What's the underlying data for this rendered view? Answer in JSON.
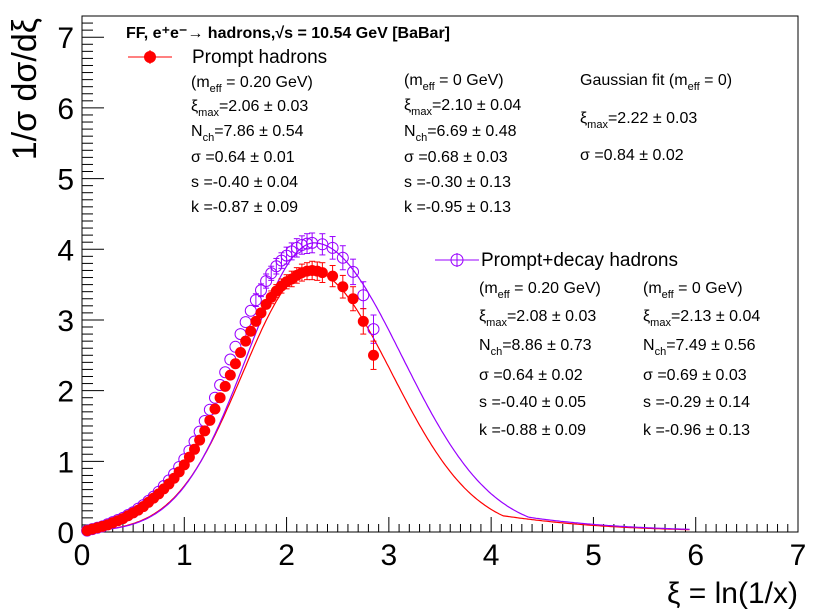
{
  "chart_data": {
    "type": "scatter",
    "title": "FF, e⁺e⁻→ hadrons,√s = 10.54 GeV [BaBar]",
    "xlabel": "ξ = ln(1/x)",
    "ylabel": "1/σ dσ/dξ",
    "xlim": [
      0,
      7
    ],
    "ylim": [
      0,
      7.3
    ],
    "x_ticks": [
      "0",
      "1",
      "2",
      "3",
      "4",
      "5",
      "6",
      "7"
    ],
    "y_ticks": [
      "0",
      "1",
      "2",
      "3",
      "4",
      "5",
      "6",
      "7"
    ],
    "series": [
      {
        "name": "Prompt hadrons",
        "color": "#ff0000",
        "marker": "filled-circle",
        "points": [
          {
            "x": 0.05,
            "y": 0.02,
            "err": 0.01
          },
          {
            "x": 0.1,
            "y": 0.04,
            "err": 0.01
          },
          {
            "x": 0.15,
            "y": 0.06,
            "err": 0.01
          },
          {
            "x": 0.2,
            "y": 0.08,
            "err": 0.01
          },
          {
            "x": 0.25,
            "y": 0.1,
            "err": 0.01
          },
          {
            "x": 0.3,
            "y": 0.13,
            "err": 0.01
          },
          {
            "x": 0.35,
            "y": 0.16,
            "err": 0.01
          },
          {
            "x": 0.4,
            "y": 0.19,
            "err": 0.01
          },
          {
            "x": 0.45,
            "y": 0.23,
            "err": 0.01
          },
          {
            "x": 0.5,
            "y": 0.27,
            "err": 0.01
          },
          {
            "x": 0.55,
            "y": 0.31,
            "err": 0.01
          },
          {
            "x": 0.6,
            "y": 0.36,
            "err": 0.01
          },
          {
            "x": 0.65,
            "y": 0.42,
            "err": 0.02
          },
          {
            "x": 0.7,
            "y": 0.48,
            "err": 0.02
          },
          {
            "x": 0.75,
            "y": 0.54,
            "err": 0.02
          },
          {
            "x": 0.8,
            "y": 0.61,
            "err": 0.02
          },
          {
            "x": 0.85,
            "y": 0.68,
            "err": 0.02
          },
          {
            "x": 0.9,
            "y": 0.76,
            "err": 0.02
          },
          {
            "x": 0.95,
            "y": 0.85,
            "err": 0.02
          },
          {
            "x": 1.0,
            "y": 0.95,
            "err": 0.03
          },
          {
            "x": 1.05,
            "y": 1.06,
            "err": 0.03
          },
          {
            "x": 1.1,
            "y": 1.17,
            "err": 0.03
          },
          {
            "x": 1.15,
            "y": 1.3,
            "err": 0.03
          },
          {
            "x": 1.2,
            "y": 1.43,
            "err": 0.03
          },
          {
            "x": 1.25,
            "y": 1.58,
            "err": 0.04
          },
          {
            "x": 1.3,
            "y": 1.74,
            "err": 0.04
          },
          {
            "x": 1.35,
            "y": 1.9,
            "err": 0.04
          },
          {
            "x": 1.4,
            "y": 2.06,
            "err": 0.05
          },
          {
            "x": 1.45,
            "y": 2.22,
            "err": 0.05
          },
          {
            "x": 1.5,
            "y": 2.38,
            "err": 0.05
          },
          {
            "x": 1.55,
            "y": 2.54,
            "err": 0.06
          },
          {
            "x": 1.6,
            "y": 2.7,
            "err": 0.06
          },
          {
            "x": 1.65,
            "y": 2.84,
            "err": 0.07
          },
          {
            "x": 1.7,
            "y": 2.98,
            "err": 0.07
          },
          {
            "x": 1.75,
            "y": 3.1,
            "err": 0.08
          },
          {
            "x": 1.8,
            "y": 3.22,
            "err": 0.08
          },
          {
            "x": 1.85,
            "y": 3.32,
            "err": 0.09
          },
          {
            "x": 1.9,
            "y": 3.41,
            "err": 0.09
          },
          {
            "x": 1.95,
            "y": 3.48,
            "err": 0.1
          },
          {
            "x": 2.0,
            "y": 3.54,
            "err": 0.1
          },
          {
            "x": 2.05,
            "y": 3.58,
            "err": 0.11
          },
          {
            "x": 2.1,
            "y": 3.63,
            "err": 0.11
          },
          {
            "x": 2.15,
            "y": 3.67,
            "err": 0.12
          },
          {
            "x": 2.2,
            "y": 3.69,
            "err": 0.12
          },
          {
            "x": 2.25,
            "y": 3.7,
            "err": 0.13
          },
          {
            "x": 2.3,
            "y": 3.69,
            "err": 0.13
          },
          {
            "x": 2.35,
            "y": 3.67,
            "err": 0.14
          },
          {
            "x": 2.45,
            "y": 3.62,
            "err": 0.15
          },
          {
            "x": 2.55,
            "y": 3.47,
            "err": 0.16
          },
          {
            "x": 2.65,
            "y": 3.3,
            "err": 0.17
          },
          {
            "x": 2.75,
            "y": 2.98,
            "err": 0.18
          },
          {
            "x": 2.85,
            "y": 2.5,
            "err": 0.2
          }
        ],
        "fit": {
          "xi_max": 2.23,
          "peak": 3.7,
          "sigma_left": 0.66,
          "sigma_right": 0.8,
          "x_end": 5.95
        }
      },
      {
        "name": "Prompt+decay hadrons",
        "color": "#9900ff",
        "marker": "open-circle",
        "points": [
          {
            "x": 0.05,
            "y": 0.02,
            "err": 0.01
          },
          {
            "x": 0.1,
            "y": 0.04,
            "err": 0.01
          },
          {
            "x": 0.15,
            "y": 0.06,
            "err": 0.01
          },
          {
            "x": 0.2,
            "y": 0.08,
            "err": 0.01
          },
          {
            "x": 0.25,
            "y": 0.11,
            "err": 0.01
          },
          {
            "x": 0.3,
            "y": 0.14,
            "err": 0.01
          },
          {
            "x": 0.35,
            "y": 0.17,
            "err": 0.01
          },
          {
            "x": 0.4,
            "y": 0.2,
            "err": 0.01
          },
          {
            "x": 0.45,
            "y": 0.24,
            "err": 0.01
          },
          {
            "x": 0.5,
            "y": 0.28,
            "err": 0.01
          },
          {
            "x": 0.55,
            "y": 0.33,
            "err": 0.01
          },
          {
            "x": 0.6,
            "y": 0.38,
            "err": 0.02
          },
          {
            "x": 0.65,
            "y": 0.44,
            "err": 0.02
          },
          {
            "x": 0.7,
            "y": 0.5,
            "err": 0.02
          },
          {
            "x": 0.75,
            "y": 0.57,
            "err": 0.02
          },
          {
            "x": 0.8,
            "y": 0.65,
            "err": 0.02
          },
          {
            "x": 0.85,
            "y": 0.73,
            "err": 0.02
          },
          {
            "x": 0.9,
            "y": 0.82,
            "err": 0.02
          },
          {
            "x": 0.95,
            "y": 0.92,
            "err": 0.03
          },
          {
            "x": 1.0,
            "y": 1.03,
            "err": 0.03
          },
          {
            "x": 1.05,
            "y": 1.15,
            "err": 0.03
          },
          {
            "x": 1.1,
            "y": 1.28,
            "err": 0.03
          },
          {
            "x": 1.15,
            "y": 1.42,
            "err": 0.04
          },
          {
            "x": 1.2,
            "y": 1.57,
            "err": 0.04
          },
          {
            "x": 1.25,
            "y": 1.73,
            "err": 0.04
          },
          {
            "x": 1.3,
            "y": 1.9,
            "err": 0.05
          },
          {
            "x": 1.35,
            "y": 2.08,
            "err": 0.05
          },
          {
            "x": 1.4,
            "y": 2.26,
            "err": 0.06
          },
          {
            "x": 1.45,
            "y": 2.44,
            "err": 0.06
          },
          {
            "x": 1.5,
            "y": 2.62,
            "err": 0.07
          },
          {
            "x": 1.55,
            "y": 2.8,
            "err": 0.07
          },
          {
            "x": 1.6,
            "y": 2.97,
            "err": 0.08
          },
          {
            "x": 1.65,
            "y": 3.13,
            "err": 0.08
          },
          {
            "x": 1.7,
            "y": 3.28,
            "err": 0.09
          },
          {
            "x": 1.75,
            "y": 3.42,
            "err": 0.09
          },
          {
            "x": 1.8,
            "y": 3.55,
            "err": 0.1
          },
          {
            "x": 1.85,
            "y": 3.66,
            "err": 0.1
          },
          {
            "x": 1.9,
            "y": 3.76,
            "err": 0.11
          },
          {
            "x": 1.95,
            "y": 3.84,
            "err": 0.11
          },
          {
            "x": 2.0,
            "y": 3.91,
            "err": 0.12
          },
          {
            "x": 2.05,
            "y": 3.97,
            "err": 0.12
          },
          {
            "x": 2.1,
            "y": 4.02,
            "err": 0.13
          },
          {
            "x": 2.15,
            "y": 4.06,
            "err": 0.13
          },
          {
            "x": 2.2,
            "y": 4.08,
            "err": 0.14
          },
          {
            "x": 2.25,
            "y": 4.09,
            "err": 0.14
          },
          {
            "x": 2.35,
            "y": 4.07,
            "err": 0.15
          },
          {
            "x": 2.45,
            "y": 4.02,
            "err": 0.16
          },
          {
            "x": 2.55,
            "y": 3.88,
            "err": 0.17
          },
          {
            "x": 2.65,
            "y": 3.68,
            "err": 0.18
          },
          {
            "x": 2.75,
            "y": 3.35,
            "err": 0.19
          },
          {
            "x": 2.85,
            "y": 2.87,
            "err": 0.2
          }
        ],
        "fit": {
          "xi_max": 2.27,
          "peak": 4.09,
          "sigma_left": 0.66,
          "sigma_right": 0.86,
          "x_end": 5.95
        }
      }
    ]
  },
  "legend": {
    "prompt_label": "Prompt hadrons",
    "prompt_decay_label": "Prompt+decay hadrons"
  },
  "annotations": {
    "prompt": {
      "col1": {
        "header": "(m",
        "header_sub": "eff",
        "header_rest": " = 0.20 GeV)",
        "ximax": "=2.06 ± 0.03",
        "nch": "=7.86 ± 0.54",
        "sigma": "σ =0.64 ± 0.01",
        "s": "s =-0.40 ± 0.04",
        "k": "k =-0.87 ± 0.09"
      },
      "col2": {
        "header": "(m",
        "header_sub": "eff",
        "header_rest": " = 0 GeV)",
        "ximax": "=2.10 ± 0.04",
        "nch": "=6.69 ± 0.48",
        "sigma": "σ =0.68 ± 0.03",
        "s": "s =-0.30 ± 0.13",
        "k": "k =-0.95 ± 0.13"
      },
      "col3": {
        "header": "Gaussian fit (m",
        "header_sub": "eff",
        "header_rest": " = 0)",
        "ximax": "=2.22 ± 0.03",
        "sigma": "σ =0.84 ± 0.02"
      }
    },
    "prompt_decay": {
      "col1": {
        "header": "(m",
        "header_sub": "eff",
        "header_rest": " = 0.20 GeV)",
        "ximax": "=2.08 ± 0.03",
        "nch": "=8.86 ± 0.73",
        "sigma": "σ =0.64 ± 0.02",
        "s": "s =-0.40 ± 0.05",
        "k": "k =-0.88 ± 0.09"
      },
      "col2": {
        "header": "(m",
        "header_sub": "eff",
        "header_rest": " = 0 GeV)",
        "ximax": "=2.13 ± 0.04",
        "nch": "=7.49 ± 0.56",
        "sigma": "σ =0.69 ± 0.03",
        "s": "s =-0.29 ± 0.14",
        "k": "k =-0.96 ± 0.13"
      }
    },
    "symbols": {
      "xi": "ξ",
      "max_sub": "max",
      "n": "N",
      "ch_sub": "ch"
    }
  }
}
